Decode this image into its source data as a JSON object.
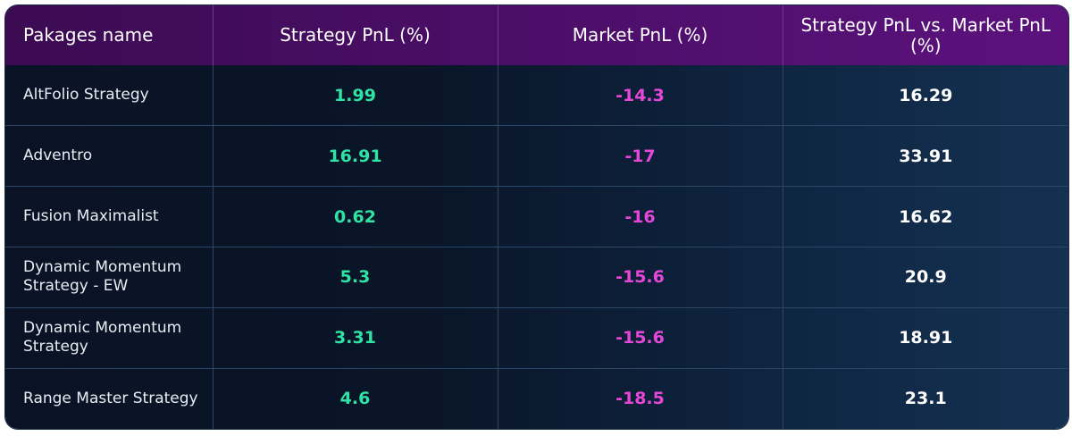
{
  "table": {
    "headers": {
      "name": "Pakages name",
      "strategy": "Strategy PnL (%)",
      "market": "Market PnL (%)",
      "diff": "Strategy PnL vs. Market PnL (%)"
    },
    "rows": [
      {
        "name": "AltFolio Strategy",
        "strategy": "1.99",
        "market": "-14.3",
        "diff": "16.29"
      },
      {
        "name": "Adventro",
        "strategy": "16.91",
        "market": "-17",
        "diff": "33.91"
      },
      {
        "name": "Fusion Maximalist",
        "strategy": "0.62",
        "market": "-16",
        "diff": "16.62"
      },
      {
        "name": "Dynamic Momentum Strategy - EW",
        "strategy": "5.3",
        "market": "-15.6",
        "diff": "20.9"
      },
      {
        "name": "Dynamic Momentum Strategy",
        "strategy": "3.31",
        "market": "-15.6",
        "diff": "18.91"
      },
      {
        "name": "Range Master Strategy",
        "strategy": "4.6",
        "market": "-18.5",
        "diff": "23.1"
      }
    ]
  },
  "colors": {
    "header_bg": "#4a0e66",
    "positive": "#2ee3a4",
    "negative": "#e548d8",
    "text": "#ffffff"
  }
}
